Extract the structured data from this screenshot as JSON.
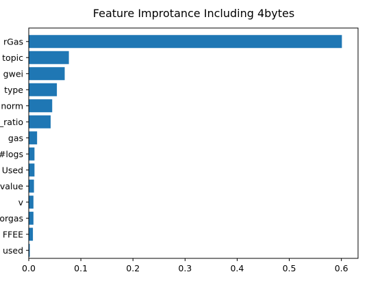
{
  "chart_data": {
    "type": "bar",
    "orientation": "horizontal",
    "title": "Feature Improtance Including 4bytes",
    "xlabel": "",
    "ylabel": "",
    "categories": [
      "rGas",
      "topic",
      "gwei",
      "type",
      "norm",
      "_ratio",
      "gas",
      "#logs",
      "Used",
      "value",
      "v",
      "orgas",
      "FFEE",
      "used"
    ],
    "values": [
      0.601,
      0.077,
      0.069,
      0.054,
      0.045,
      0.042,
      0.016,
      0.011,
      0.011,
      0.01,
      0.009,
      0.009,
      0.008,
      0.002
    ],
    "xlim": [
      0.0,
      0.632
    ],
    "xticks": [
      0.0,
      0.1,
      0.2,
      0.3,
      0.4,
      0.5,
      0.6
    ],
    "xtick_labels": [
      "0.0",
      "0.1",
      "0.2",
      "0.3",
      "0.4",
      "0.5",
      "0.6"
    ],
    "grid": false,
    "color": "#1f77b4"
  }
}
